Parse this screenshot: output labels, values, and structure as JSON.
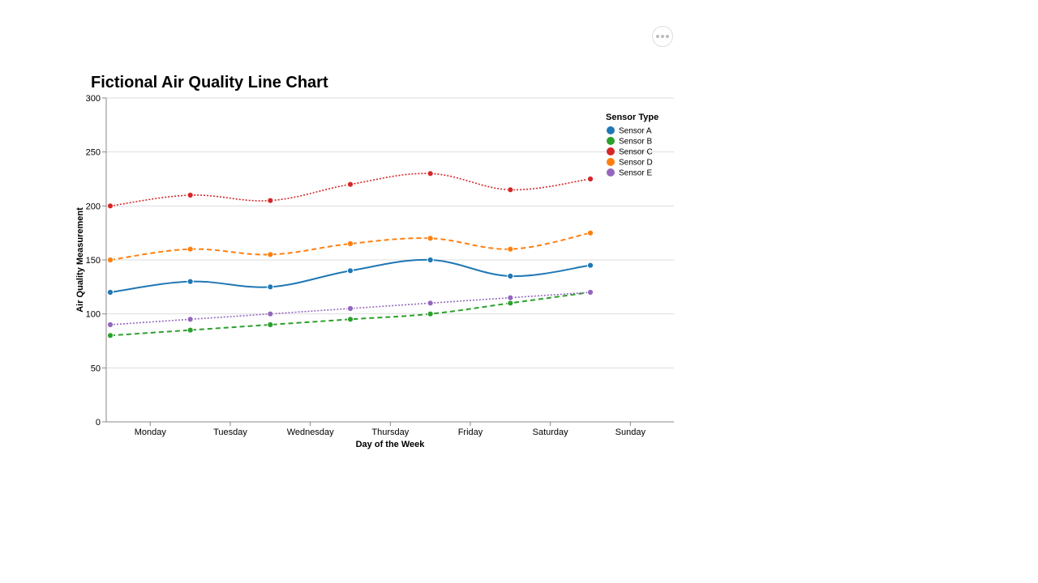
{
  "menu": {
    "icon": "more-horizontal-icon"
  },
  "chart_data": {
    "type": "line",
    "title": "Fictional Air Quality Line Chart",
    "xlabel": "Day of the Week",
    "ylabel": "Air Quality Measurement",
    "categories": [
      "Monday",
      "Tuesday",
      "Wednesday",
      "Thursday",
      "Friday",
      "Saturday",
      "Sunday"
    ],
    "ylim": [
      0,
      300
    ],
    "yticks": [
      0,
      50,
      100,
      150,
      200,
      250,
      300
    ],
    "grid": true,
    "legend": {
      "title": "Sensor Type",
      "placement": "top-right"
    },
    "series": [
      {
        "name": "Sensor A",
        "color": "#1f77b4",
        "dash": "solid",
        "values": [
          120,
          130,
          125,
          140,
          150,
          135,
          145
        ]
      },
      {
        "name": "Sensor B",
        "color": "#2ca02c",
        "dash": "dashed",
        "values": [
          80,
          85,
          90,
          95,
          100,
          110,
          120
        ]
      },
      {
        "name": "Sensor C",
        "color": "#d62728",
        "dash": "dotted",
        "values": [
          200,
          210,
          205,
          220,
          230,
          215,
          225
        ]
      },
      {
        "name": "Sensor D",
        "color": "#ff7f0e",
        "dash": "dashed",
        "values": [
          150,
          160,
          155,
          165,
          170,
          160,
          175
        ]
      },
      {
        "name": "Sensor E",
        "color": "#9467bd",
        "dash": "dotted",
        "values": [
          90,
          95,
          100,
          105,
          110,
          115,
          120
        ]
      }
    ]
  }
}
